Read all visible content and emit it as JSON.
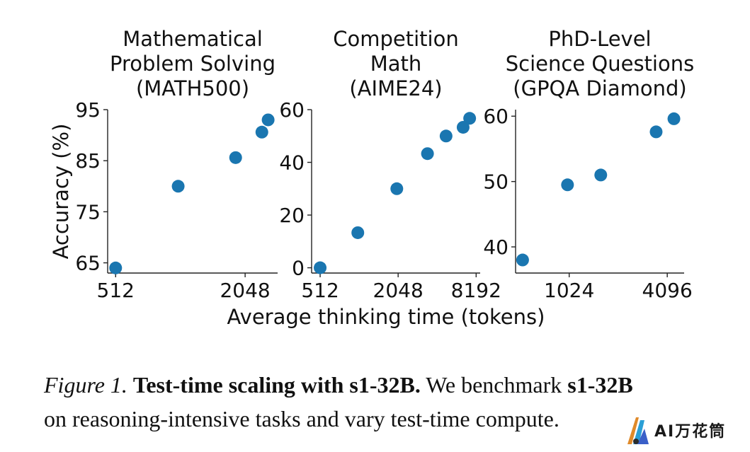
{
  "chart_data": [
    {
      "type": "scatter",
      "title": "Mathematical\nProblem Solving\n(MATH500)",
      "ylabel": "Accuracy (%)",
      "xscale": "log2",
      "xlim": [
        470,
        2900
      ],
      "ylim": [
        63,
        95
      ],
      "xticks": [
        512,
        2048
      ],
      "xtick_labels": [
        "512",
        "2048"
      ],
      "yticks": [
        65,
        75,
        85,
        95
      ],
      "ytick_labels": [
        "65",
        "75",
        "85",
        "95"
      ],
      "color": "#1a76b0",
      "points": [
        {
          "x": 512,
          "y": 64.0
        },
        {
          "x": 1000,
          "y": 80.0
        },
        {
          "x": 1850,
          "y": 85.6
        },
        {
          "x": 2450,
          "y": 90.6
        },
        {
          "x": 2620,
          "y": 93.0
        }
      ]
    },
    {
      "type": "scatter",
      "title": "Competition\nMath\n(AIME24)",
      "ylabel": "",
      "xscale": "log2",
      "xlim": [
        440,
        8800
      ],
      "ylim": [
        -2,
        60
      ],
      "xticks": [
        512,
        2048,
        8192
      ],
      "xtick_labels": [
        "512",
        "2048",
        "8192"
      ],
      "yticks": [
        0,
        20,
        40,
        60
      ],
      "ytick_labels": [
        "0",
        "20",
        "40",
        "60"
      ],
      "color": "#1a76b0",
      "points": [
        {
          "x": 512,
          "y": 0.0
        },
        {
          "x": 1000,
          "y": 13.3
        },
        {
          "x": 2000,
          "y": 30.0
        },
        {
          "x": 3450,
          "y": 43.3
        },
        {
          "x": 4800,
          "y": 50.0
        },
        {
          "x": 6500,
          "y": 53.3
        },
        {
          "x": 7300,
          "y": 56.7
        }
      ]
    },
    {
      "type": "scatter",
      "title": "PhD-Level\nScience Questions\n(GPQA Diamond)",
      "ylabel": "",
      "xscale": "log2",
      "xlim": [
        480,
        5200
      ],
      "ylim": [
        36,
        61
      ],
      "xticks": [
        1024,
        4096
      ],
      "xtick_labels": [
        "1024",
        "4096"
      ],
      "yticks": [
        40,
        50,
        60
      ],
      "ytick_labels": [
        "40",
        "50",
        "60"
      ],
      "color": "#1a76b0",
      "points": [
        {
          "x": 530,
          "y": 38.0
        },
        {
          "x": 1000,
          "y": 49.5
        },
        {
          "x": 1600,
          "y": 51.0
        },
        {
          "x": 3500,
          "y": 57.6
        },
        {
          "x": 4500,
          "y": 59.6
        }
      ]
    }
  ],
  "figure": {
    "xlabel": "Average thinking time (tokens)"
  },
  "caption": {
    "label": "Figure 1.",
    "bold_lead": "Test-time scaling with s1-32B.",
    "text_a": " We benchmark ",
    "bold_model": "s1-32B",
    "line2": "on reasoning-intensive tasks and vary test-time compute."
  },
  "watermark": {
    "text": "AI万花筒"
  }
}
